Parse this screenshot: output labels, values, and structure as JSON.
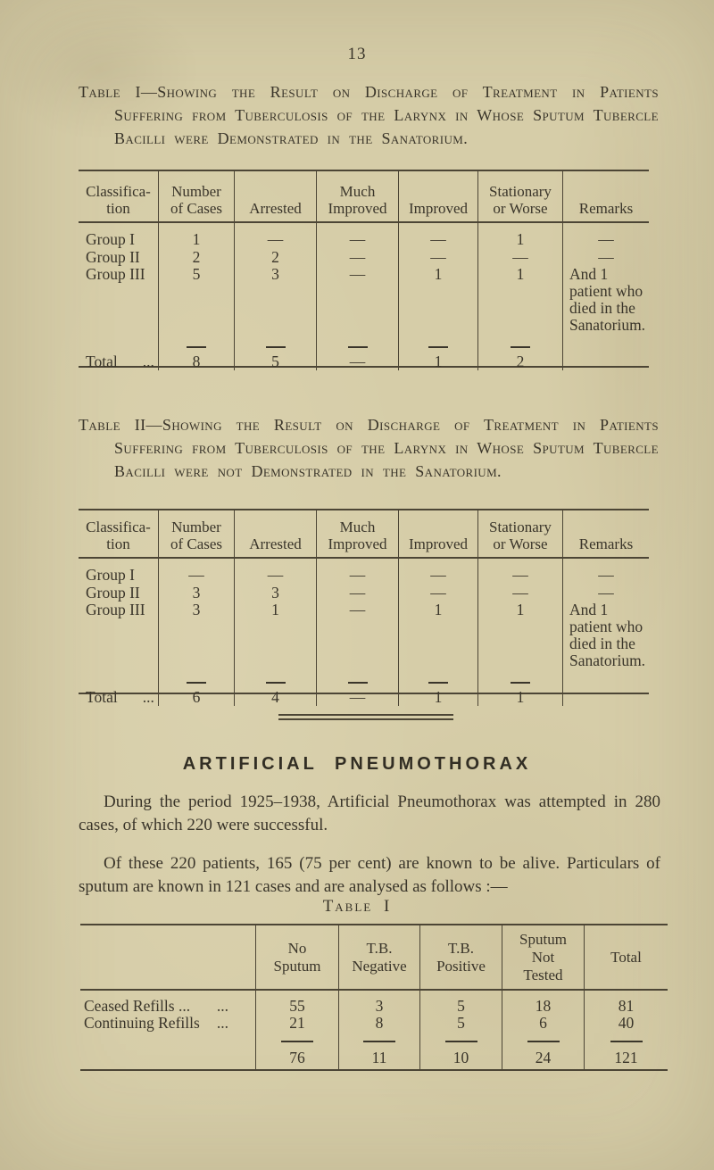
{
  "page": {
    "number": "13"
  },
  "colors": {
    "paper": "#d6cda8",
    "ink": "#3a352a",
    "rule": "#4c4535"
  },
  "table1": {
    "title": "Table I—Showing the Result on Discharge of Treatment in Patients Suffering from Tuberculosis of the Larynx in Whose Sputum Tubercle Bacilli were Demonstrated in the Sanatorium.",
    "headers": [
      "Classifica-\ntion",
      "Number\nof Cases",
      "Arrested",
      "Much\nImproved",
      "Improved",
      "Stationary\nor Worse",
      "Remarks"
    ],
    "rows": [
      {
        "label": "Group I",
        "cells": [
          "1",
          "—",
          "—",
          "—",
          "1"
        ],
        "remark": "—"
      },
      {
        "label": "Group II",
        "cells": [
          "2",
          "2",
          "—",
          "—",
          "—"
        ],
        "remark": "—"
      },
      {
        "label": "Group III",
        "cells": [
          "5",
          "3",
          "—",
          "1",
          "1"
        ],
        "remark": "And 1 patient who died in the Sana­torium."
      }
    ],
    "total": {
      "label": "Total",
      "dots": "...",
      "cells": [
        "8",
        "5",
        "—",
        "1",
        "2"
      ]
    }
  },
  "table2": {
    "title": "Table II—Showing the Result on Discharge of Treatment in Patients Suffering from Tuberculosis of the Larynx in Whose Sputum Tubercle Bacilli were not Demonstrated in the Sanatorium.",
    "headers": [
      "Classifica-\ntion",
      "Number\nof Cases",
      "Arrested",
      "Much\nImproved",
      "Improved",
      "Stationary\nor Worse",
      "Remarks"
    ],
    "rows": [
      {
        "label": "Group I",
        "cells": [
          "—",
          "—",
          "—",
          "—",
          "—"
        ],
        "remark": "—"
      },
      {
        "label": "Group II",
        "cells": [
          "3",
          "3",
          "—",
          "—",
          "—"
        ],
        "remark": "—"
      },
      {
        "label": "Group III",
        "cells": [
          "3",
          "1",
          "—",
          "1",
          "1"
        ],
        "remark": "And 1 patient who died in the Sana­torium."
      }
    ],
    "total": {
      "label": "Total",
      "dots": "...",
      "cells": [
        "6",
        "4",
        "—",
        "1",
        "1"
      ]
    }
  },
  "pneumothorax": {
    "heading": "ARTIFICIAL PNEUMOTHORAX",
    "para1": "During the period 1925–1938, Artificial Pneumothorax was attempted in 280 cases, of which 220 were successful.",
    "para2": "Of these 220 patients, 165 (75 per cent) are known to be alive.  Particulars of sputum are known in 121 cases and are analysed as follows :—",
    "caption": "Table I"
  },
  "sputum_table": {
    "headers": [
      "",
      "No\nSputum",
      "T.B.\nNegative",
      "T.B.\nPositive",
      "Sputum\nNot\nTested",
      "Total"
    ],
    "rows": [
      {
        "label": "Ceased Refills ...",
        "dots": "...",
        "cells": [
          "55",
          "3",
          "5",
          "18",
          "81"
        ]
      },
      {
        "label": "Continuing Refills",
        "dots": "...",
        "cells": [
          "21",
          "8",
          "5",
          "6",
          "40"
        ]
      }
    ],
    "total_cells": [
      "76",
      "11",
      "10",
      "24",
      "121"
    ]
  }
}
